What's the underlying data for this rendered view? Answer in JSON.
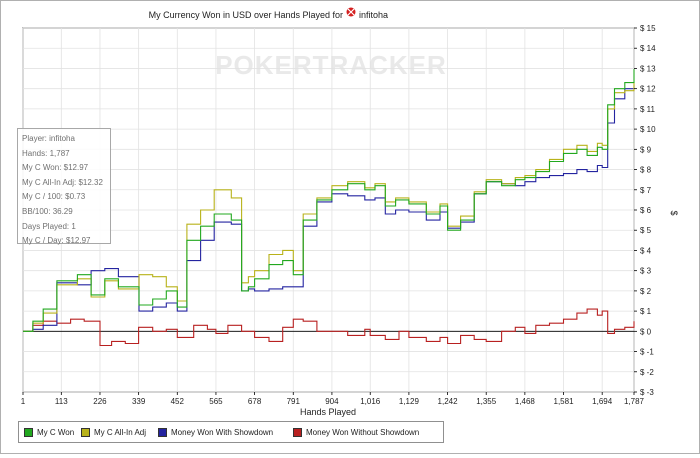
{
  "title": "My Currency Won in USD over Hands Played for",
  "player_name": "infitoha",
  "watermark": "POKERTRACKER",
  "tooltip": {
    "lines": [
      "Player: infitoha",
      "Hands: 1,787",
      "My C Won: $12.97",
      "My C All-In Adj: $12.32",
      "My C / 100: $0.73",
      "BB/100: 36.29",
      "Days Played: 1",
      "My C / Day: $12.97"
    ]
  },
  "legend": [
    {
      "label": "My C Won",
      "color": "#22a81f"
    },
    {
      "label": "My C All-In Adj",
      "color": "#b8b21a"
    },
    {
      "label": "Money Won With Showdown",
      "color": "#2424a0"
    },
    {
      "label": "Money Won Without Showdown",
      "color": "#b82020"
    }
  ],
  "chart_data": {
    "type": "line",
    "title": "My Currency Won in USD over Hands Played for infitoha",
    "xlabel": "Hands Played",
    "ylabel": "$",
    "xlim": [
      1,
      1787
    ],
    "ylim": [
      -3,
      15
    ],
    "xticks": [
      1,
      113,
      226,
      339,
      452,
      565,
      678,
      791,
      904,
      1016,
      1129,
      1242,
      1355,
      1468,
      1581,
      1694,
      1787
    ],
    "xtick_labels": [
      "1",
      "113",
      "226",
      "339",
      "452",
      "565",
      "678",
      "791",
      "904",
      "1,016",
      "1,129",
      "1,242",
      "1,355",
      "1,468",
      "1,581",
      "1,694",
      "1,787"
    ],
    "yticks": [
      -3,
      -2,
      -1,
      0,
      1,
      2,
      3,
      4,
      5,
      6,
      7,
      8,
      9,
      10,
      11,
      12,
      13,
      14,
      15
    ],
    "ytick_labels": [
      "$ -3",
      "$ -2",
      "$ -1",
      "$ 0",
      "$ 1",
      "$ 2",
      "$ 3",
      "$ 4",
      "$ 5",
      "$ 6",
      "$ 7",
      "$ 8",
      "$ 9",
      "$ 10",
      "$ 11",
      "$ 12",
      "$ 13",
      "$ 14",
      "$ 15"
    ],
    "grid": true,
    "legend_position": "bottom-left",
    "series": [
      {
        "name": "My C Won",
        "color": "#22a81f",
        "x": [
          1,
          30,
          60,
          100,
          160,
          200,
          240,
          280,
          340,
          380,
          420,
          452,
          480,
          520,
          560,
          610,
          640,
          660,
          678,
          720,
          760,
          791,
          820,
          860,
          904,
          950,
          1000,
          1030,
          1060,
          1090,
          1129,
          1180,
          1220,
          1242,
          1280,
          1320,
          1355,
          1400,
          1440,
          1468,
          1500,
          1540,
          1581,
          1620,
          1650,
          1680,
          1694,
          1710,
          1730,
          1760,
          1787
        ],
        "y": [
          0,
          0.5,
          1.1,
          2.5,
          2.8,
          1.8,
          2.6,
          2.2,
          1.3,
          1.6,
          2.0,
          1.2,
          4.5,
          5.2,
          5.8,
          5.5,
          2.0,
          2.2,
          2.6,
          3.3,
          3.5,
          2.8,
          5.5,
          6.5,
          7.0,
          7.3,
          7.0,
          7.2,
          6.2,
          6.5,
          6.3,
          5.8,
          6.2,
          5.0,
          5.5,
          6.8,
          7.4,
          7.2,
          7.5,
          7.6,
          7.9,
          8.4,
          8.8,
          9.0,
          8.7,
          9.1,
          9.0,
          11.2,
          12.0,
          12.3,
          12.97
        ]
      },
      {
        "name": "My C All-In Adj",
        "color": "#b8b21a",
        "x": [
          1,
          30,
          60,
          100,
          160,
          200,
          240,
          280,
          340,
          380,
          420,
          452,
          480,
          520,
          560,
          610,
          640,
          660,
          678,
          720,
          760,
          791,
          820,
          860,
          904,
          950,
          1000,
          1030,
          1060,
          1090,
          1129,
          1180,
          1220,
          1242,
          1280,
          1320,
          1355,
          1400,
          1440,
          1468,
          1500,
          1540,
          1581,
          1620,
          1650,
          1680,
          1694,
          1710,
          1730,
          1760,
          1787
        ],
        "y": [
          0,
          0.4,
          0.9,
          2.3,
          2.6,
          1.7,
          2.5,
          2.1,
          2.8,
          2.7,
          2.2,
          1.5,
          5.3,
          6.0,
          7.0,
          6.6,
          2.4,
          2.7,
          3.0,
          3.8,
          4.0,
          3.0,
          5.8,
          6.6,
          7.2,
          7.4,
          7.1,
          7.3,
          6.4,
          6.6,
          6.4,
          5.9,
          6.3,
          5.2,
          5.7,
          6.9,
          7.5,
          7.3,
          7.6,
          7.7,
          8.0,
          8.5,
          9.0,
          9.2,
          8.9,
          9.3,
          9.2,
          11.0,
          11.8,
          11.9,
          12.32
        ]
      },
      {
        "name": "Money Won With Showdown",
        "color": "#2424a0",
        "x": [
          1,
          30,
          60,
          100,
          160,
          200,
          240,
          280,
          340,
          380,
          420,
          452,
          480,
          520,
          560,
          610,
          640,
          660,
          678,
          720,
          760,
          791,
          820,
          860,
          904,
          950,
          1000,
          1030,
          1060,
          1090,
          1129,
          1180,
          1220,
          1242,
          1280,
          1320,
          1355,
          1400,
          1440,
          1468,
          1500,
          1540,
          1581,
          1620,
          1650,
          1680,
          1694,
          1710,
          1730,
          1760,
          1787
        ],
        "y": [
          0,
          0.1,
          0.3,
          2.4,
          2.3,
          3.0,
          3.1,
          2.7,
          1.0,
          1.2,
          1.4,
          1.0,
          3.5,
          4.5,
          5.4,
          5.3,
          2.0,
          2.1,
          2.0,
          2.1,
          2.2,
          2.2,
          5.2,
          6.4,
          6.8,
          6.7,
          6.5,
          6.6,
          5.8,
          6.0,
          5.9,
          5.5,
          5.9,
          5.1,
          5.4,
          6.8,
          7.4,
          7.3,
          7.2,
          7.4,
          7.6,
          7.7,
          7.8,
          8.0,
          7.9,
          8.2,
          8.1,
          10.3,
          11.5,
          12.0,
          12.2
        ]
      },
      {
        "name": "Money Won Without Showdown",
        "color": "#b82020",
        "x": [
          1,
          30,
          60,
          100,
          140,
          180,
          226,
          260,
          300,
          339,
          380,
          420,
          452,
          500,
          540,
          565,
          600,
          640,
          678,
          720,
          760,
          791,
          820,
          860,
          904,
          950,
          1000,
          1016,
          1060,
          1100,
          1129,
          1180,
          1220,
          1242,
          1280,
          1320,
          1355,
          1400,
          1440,
          1468,
          1500,
          1540,
          1581,
          1620,
          1650,
          1680,
          1694,
          1710,
          1730,
          1760,
          1787
        ],
        "y": [
          0,
          0.3,
          0.5,
          0.4,
          0.6,
          0.5,
          -0.7,
          -0.5,
          -0.6,
          0.2,
          0.0,
          0.1,
          -0.3,
          0.3,
          0.1,
          -0.1,
          0.3,
          0.0,
          -0.3,
          -0.5,
          0.2,
          0.6,
          0.5,
          0.0,
          0.0,
          -0.2,
          0.1,
          -0.2,
          -0.4,
          0.0,
          -0.3,
          -0.5,
          -0.3,
          -0.6,
          -0.2,
          -0.4,
          -0.5,
          0.0,
          0.2,
          -0.1,
          0.3,
          0.4,
          0.6,
          0.9,
          1.1,
          0.8,
          1.0,
          -0.1,
          0.1,
          0.2,
          0.5
        ]
      }
    ]
  }
}
